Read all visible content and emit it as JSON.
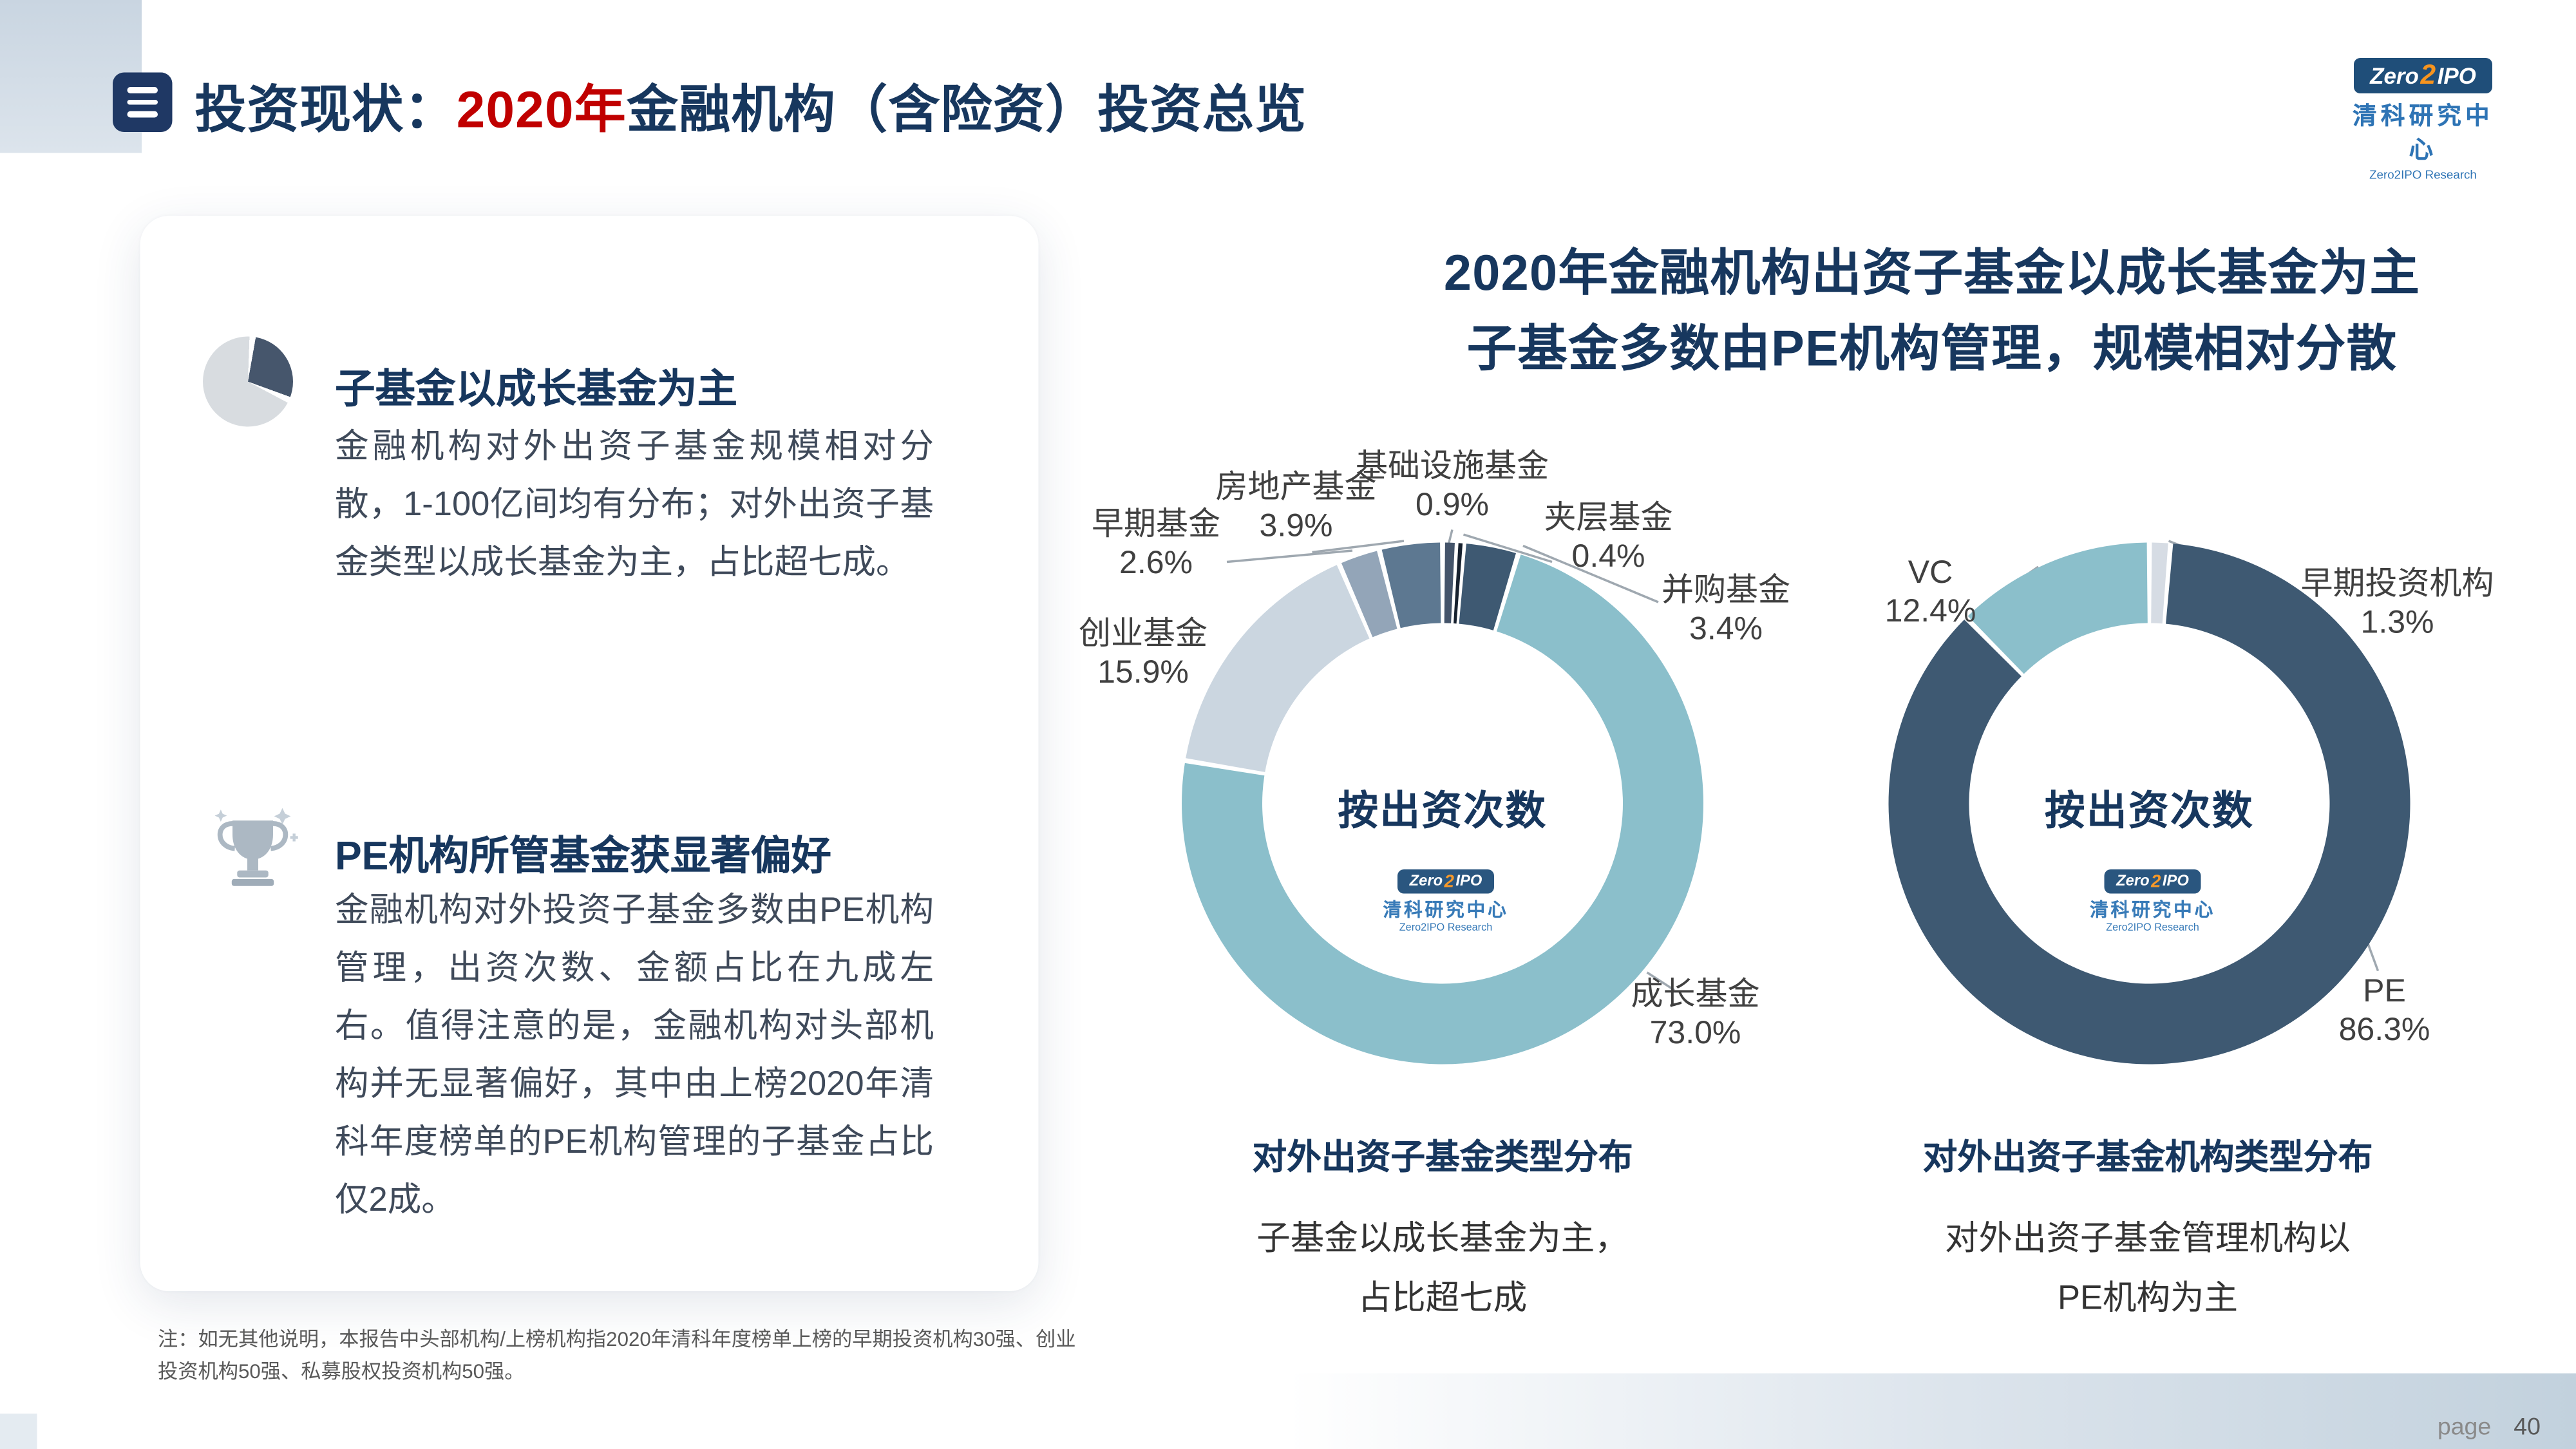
{
  "slide": {
    "title": {
      "prefix": "投资现状：",
      "highlight": "2020年",
      "suffix": "金融机构（含险资）投资总览"
    },
    "accent_colors": {
      "navy": "#17375E",
      "red": "#C00000"
    },
    "logo": {
      "zero": "Zero",
      "two": "2",
      "ipo": "IPO",
      "cn": "清科研究中心",
      "en": "Zero2IPO Research"
    },
    "page": {
      "label": "page",
      "number": "40"
    }
  },
  "left_card": {
    "sections": [
      {
        "heading": "子基金以成长基金为主",
        "body": "金融机构对外出资子基金规模相对分散，1-100亿间均有分布；对外出资子基金类型以成长基金为主，占比超七成。"
      },
      {
        "heading": "PE机构所管基金获显著偏好",
        "body": "金融机构对外投资子基金多数由PE机构管理，出资次数、金额占比在九成左右。值得注意的是，金融机构对头部机构并无显著偏好，其中由上榜2020年清科年度榜单的PE机构管理的子基金占比仅2成。"
      }
    ]
  },
  "headline": {
    "line1": "2020年金融机构出资子基金以成长基金为主",
    "line2": "子基金多数由PE机构管理，规模相对分散"
  },
  "footnote": "注：如无其他说明，本报告中头部机构/上榜机构指2020年清科年度榜单上榜的早期投资机构30强、创业投资机构50强、私募股权投资机构50强。",
  "chart_data": [
    {
      "type": "pie",
      "style": "donut",
      "center_label": "按出资次数",
      "caption": "对外出资子基金类型分布",
      "subcaption": [
        "子基金以成长基金为主，",
        "占比超七成"
      ],
      "series": [
        {
          "name": "基础设施基金",
          "value": 0.9,
          "pct": "0.9%",
          "color": "#44546A"
        },
        {
          "name": "夹层基金",
          "value": 0.4,
          "pct": "0.4%",
          "color": "#17212E"
        },
        {
          "name": "并购基金",
          "value": 3.4,
          "pct": "3.4%",
          "color": "#3E5972"
        },
        {
          "name": "成长基金",
          "value": 73.0,
          "pct": "73.0%",
          "color": "#8BBFCB"
        },
        {
          "name": "创业基金",
          "value": 15.9,
          "pct": "15.9%",
          "color": "#CBD6E0"
        },
        {
          "name": "早期基金",
          "value": 2.6,
          "pct": "2.6%",
          "color": "#93A5B8"
        },
        {
          "name": "房地产基金",
          "value": 3.9,
          "pct": "3.9%",
          "color": "#5D7891"
        }
      ]
    },
    {
      "type": "pie",
      "style": "donut",
      "center_label": "按出资次数",
      "caption": "对外出资子基金机构类型分布",
      "subcaption": [
        "对外出资子基金管理机构以",
        "PE机构为主"
      ],
      "series": [
        {
          "name": "早期投资机构",
          "value": 1.3,
          "pct": "1.3%",
          "color": "#D6DCE4"
        },
        {
          "name": "PE",
          "value": 86.3,
          "pct": "86.3%",
          "color": "#3E5972"
        },
        {
          "name": "VC",
          "value": 12.4,
          "pct": "12.4%",
          "color": "#8BBFCB"
        }
      ]
    }
  ]
}
